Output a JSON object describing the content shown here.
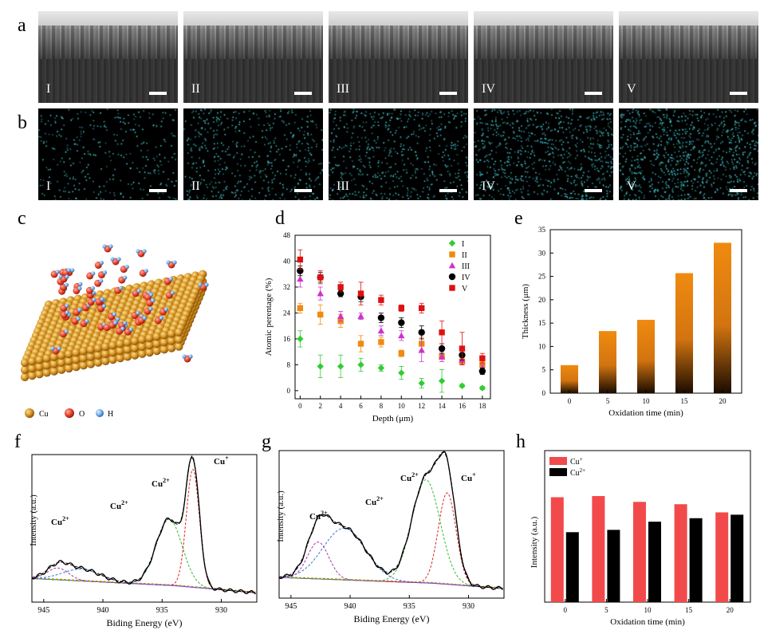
{
  "panel_labels": {
    "a": "a",
    "b": "b",
    "c": "c",
    "d": "d",
    "e": "e",
    "f": "f",
    "g": "g",
    "h": "h"
  },
  "sem_labels": [
    "I",
    "II",
    "III",
    "IV",
    "V"
  ],
  "eds_labels": [
    "I",
    "II",
    "III",
    "IV",
    "V"
  ],
  "eds_densities": [
    0.35,
    0.55,
    0.6,
    0.85,
    1.0
  ],
  "colors": {
    "cyan": "#48d7e0",
    "cu_ball": "#d08a1d",
    "o_ball": "#e43a22",
    "h_ball": "#6aa8e8",
    "orange": "#f08a10",
    "red": "#f24a4a",
    "green": "#33cc33",
    "purple": "#cc33cc"
  },
  "legend_c": {
    "cu": "Cu",
    "o": "O",
    "h": "H"
  },
  "chart_data": [
    {
      "id": "d",
      "type": "scatter",
      "xlabel": "Depth (μm)",
      "ylabel": "Atomic perentage (%)",
      "xlim": [
        -0.5,
        18.8
      ],
      "ylim": [
        -2.5,
        48
      ],
      "xticks": [
        0,
        2,
        4,
        6,
        8,
        10,
        12,
        14,
        16,
        18
      ],
      "yticks": [
        0,
        8,
        16,
        24,
        32,
        40,
        48
      ],
      "x": [
        0,
        2,
        4,
        6,
        8,
        10,
        12,
        14,
        16,
        18
      ],
      "series": [
        {
          "name": "I",
          "color": "#33cc33",
          "marker": "diamond",
          "values": [
            16,
            7.5,
            7.5,
            8,
            7,
            5.5,
            2.3,
            3,
            1.5,
            0.8
          ],
          "errors": [
            2.5,
            3.5,
            3.5,
            2,
            1,
            2,
            1.5,
            3.5,
            0.5,
            0.5
          ]
        },
        {
          "name": "II",
          "color": "#f08a10",
          "marker": "square",
          "values": [
            25.5,
            23.5,
            21.5,
            14.5,
            15,
            11.5,
            14.5,
            10.5,
            9,
            8
          ],
          "errors": [
            1.5,
            3,
            2,
            2.5,
            1.5,
            1,
            2,
            1.5,
            1,
            1
          ]
        },
        {
          "name": "III",
          "color": "#cc33cc",
          "marker": "triangle",
          "values": [
            34.5,
            30,
            23,
            23,
            18.5,
            17,
            12.5,
            10.5,
            9.5,
            7
          ],
          "errors": [
            2.5,
            2,
            1.5,
            1,
            1.5,
            1.5,
            3.5,
            1.5,
            1.5,
            1
          ]
        },
        {
          "name": "IV",
          "color": "#000000",
          "marker": "circle",
          "values": [
            37,
            35,
            30,
            29,
            22.5,
            21,
            18,
            13,
            11,
            6
          ],
          "errors": [
            1.5,
            1.5,
            1,
            1.5,
            1.5,
            1.5,
            2,
            1.5,
            1.5,
            1
          ]
        },
        {
          "name": "V",
          "color": "#dd1111",
          "marker": "square",
          "values": [
            40.5,
            35,
            32,
            30,
            28,
            25.5,
            25.5,
            18,
            13,
            10
          ],
          "errors": [
            3,
            2,
            1.5,
            3.5,
            1.5,
            1,
            1.5,
            3.5,
            5,
            1.5
          ]
        }
      ]
    },
    {
      "id": "e",
      "type": "bar",
      "xlabel": "Oxidation time (min)",
      "ylabel": "Thickness (μm)",
      "categories": [
        "0",
        "5",
        "10",
        "15",
        "20"
      ],
      "values": [
        6,
        13.3,
        15.7,
        25.7,
        32.2
      ],
      "ylim": [
        0,
        35
      ],
      "yticks": [
        0,
        5,
        10,
        15,
        20,
        25,
        30,
        35
      ]
    },
    {
      "id": "f",
      "type": "line",
      "xlabel": "Biding Energy (eV)",
      "ylabel": "Intensity (a.u.)",
      "xlim": [
        946,
        927
      ],
      "xticks": [
        945,
        940,
        935,
        930
      ],
      "annotations": [
        "Cu+",
        "Cu2+",
        "Cu2+",
        "Cu2+"
      ]
    },
    {
      "id": "g",
      "type": "line",
      "xlabel": "Biding Energy (eV)",
      "ylabel": "Intensity (a.u.)",
      "xlim": [
        946,
        927
      ],
      "xticks": [
        945,
        940,
        935,
        930
      ],
      "annotations": [
        "Cu2+",
        "Cu2+",
        "Cu2+",
        "Cu+"
      ]
    },
    {
      "id": "h",
      "type": "bar",
      "xlabel": "Oxidation time (min)",
      "ylabel": "Intensity (a.u.)",
      "categories": [
        "0",
        "5",
        "10",
        "15",
        "20"
      ],
      "series": [
        {
          "name": "Cu+",
          "color": "#f24a4a",
          "values": [
            0.9,
            0.91,
            0.86,
            0.84,
            0.77
          ]
        },
        {
          "name": "Cu2+",
          "color": "#000000",
          "values": [
            0.6,
            0.62,
            0.69,
            0.72,
            0.75
          ]
        }
      ],
      "ylim": [
        0,
        1.3
      ]
    }
  ]
}
